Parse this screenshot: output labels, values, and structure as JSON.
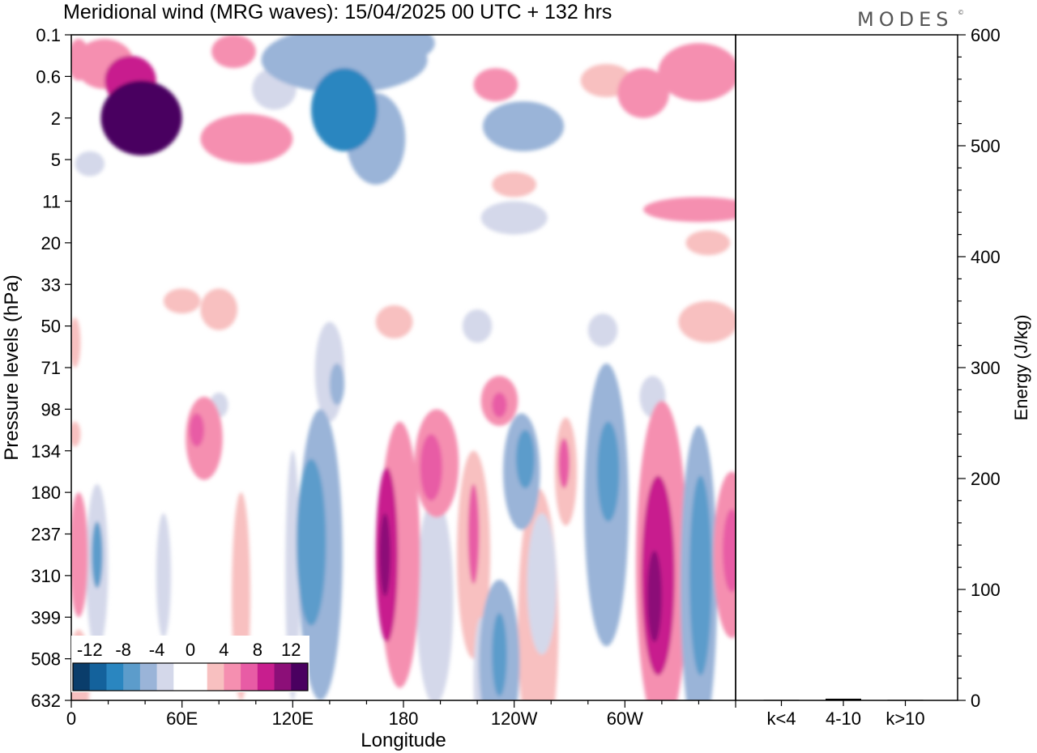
{
  "chart_data": {
    "type": "heatmap",
    "title": "Meridional wind (MRG waves):  15/04/2025  00 UTC  + 132 hrs",
    "brand": "MODES",
    "brand_mark": "©",
    "xlabel": "Longitude",
    "ylabel": "Pressure levels (hPa)",
    "x_ticks": [
      "0",
      "60E",
      "120E",
      "180",
      "120W",
      "60W"
    ],
    "x_tick_degrees": [
      0,
      60,
      120,
      180,
      240,
      300
    ],
    "x_range": [
      0,
      360
    ],
    "y_levels": [
      "0.1",
      "0.6",
      "2",
      "5",
      "11",
      "20",
      "33",
      "50",
      "71",
      "98",
      "134",
      "180",
      "237",
      "310",
      "399",
      "508",
      "632"
    ],
    "colorbar": {
      "labels": [
        "-12",
        "-8",
        "-4",
        "0",
        "4",
        "8",
        "12"
      ],
      "colors": [
        "#0a3d6b",
        "#14629c",
        "#2a86c0",
        "#5c9ccb",
        "#9ab4d8",
        "#d4d8ea",
        "#ffffff",
        "#ffffff",
        "#f8c0c0",
        "#f58fb0",
        "#e85ca5",
        "#c81e8e",
        "#8c0f78",
        "#4a0060"
      ]
    },
    "energy_panel": {
      "ylabel": "Energy (J/kg)",
      "y_ticks": [
        "0",
        "100",
        "200",
        "300",
        "400",
        "500",
        "600"
      ],
      "ylim": [
        0,
        600
      ],
      "categories": [
        "k<4",
        "4-10",
        "k>10"
      ],
      "values": [
        0.5,
        1.5,
        0.5
      ]
    },
    "blobs": [
      {
        "lon": 4,
        "lev": 0.6,
        "rx": 6,
        "ry": 0.5,
        "val": 4
      },
      {
        "lon": 18,
        "lev": 0.7,
        "rx": 16,
        "ry": 0.6,
        "val": 5
      },
      {
        "lon": 32,
        "lev": 1.1,
        "rx": 14,
        "ry": 0.6,
        "val": 8
      },
      {
        "lon": 38,
        "lev": 2.0,
        "rx": 22,
        "ry": 0.9,
        "val": 13
      },
      {
        "lon": 88,
        "lev": 0.4,
        "rx": 12,
        "ry": 0.4,
        "val": 4
      },
      {
        "lon": 95,
        "lev": 2.5,
        "rx": 25,
        "ry": 0.6,
        "val": 4
      },
      {
        "lon": 110,
        "lev": 1.3,
        "rx": 12,
        "ry": 0.5,
        "val": -3
      },
      {
        "lon": 148,
        "lev": 0.6,
        "rx": 45,
        "ry": 0.8,
        "val": -4
      },
      {
        "lon": 148,
        "lev": 1.8,
        "rx": 18,
        "ry": 1.0,
        "val": -8
      },
      {
        "lon": 165,
        "lev": 2.5,
        "rx": 16,
        "ry": 1.1,
        "val": -5
      },
      {
        "lon": 172,
        "lev": 0.2,
        "rx": 25,
        "ry": 0.5,
        "val": -5
      },
      {
        "lon": 230,
        "lev": 1.2,
        "rx": 12,
        "ry": 0.4,
        "val": 4
      },
      {
        "lon": 245,
        "lev": 2.2,
        "rx": 22,
        "ry": 0.6,
        "val": -5
      },
      {
        "lon": 240,
        "lev": 3.6,
        "rx": 12,
        "ry": 0.3,
        "val": 3
      },
      {
        "lon": 240,
        "lev": 4.4,
        "rx": 18,
        "ry": 0.4,
        "val": -3
      },
      {
        "lon": 290,
        "lev": 1.1,
        "rx": 14,
        "ry": 0.4,
        "val": 3
      },
      {
        "lon": 310,
        "lev": 1.4,
        "rx": 14,
        "ry": 0.6,
        "val": 4
      },
      {
        "lon": 340,
        "lev": 0.9,
        "rx": 22,
        "ry": 0.7,
        "val": 5
      },
      {
        "lon": 340,
        "lev": 4.2,
        "rx": 30,
        "ry": 0.3,
        "val": 4
      },
      {
        "lon": 345,
        "lev": 5.0,
        "rx": 12,
        "ry": 0.3,
        "val": 3
      },
      {
        "lon": 10,
        "lev": 3.1,
        "rx": 8,
        "ry": 0.3,
        "val": -3
      },
      {
        "lon": 60,
        "lev": 6.4,
        "rx": 10,
        "ry": 0.3,
        "val": 3
      },
      {
        "lon": 80,
        "lev": 6.6,
        "rx": 10,
        "ry": 0.5,
        "val": 3
      },
      {
        "lon": 80,
        "lev": 8.9,
        "rx": 5,
        "ry": 0.3,
        "val": -3
      },
      {
        "lon": 175,
        "lev": 6.9,
        "rx": 10,
        "ry": 0.4,
        "val": 3
      },
      {
        "lon": 220,
        "lev": 7.0,
        "rx": 8,
        "ry": 0.4,
        "val": -3
      },
      {
        "lon": 288,
        "lev": 7.1,
        "rx": 8,
        "ry": 0.4,
        "val": -3
      },
      {
        "lon": 345,
        "lev": 6.9,
        "rx": 16,
        "ry": 0.5,
        "val": 3
      },
      {
        "lon": 2,
        "lev": 7.4,
        "rx": 3,
        "ry": 0.6,
        "val": 3
      },
      {
        "lon": 140,
        "lev": 8.1,
        "rx": 8,
        "ry": 1.2,
        "val": -3
      },
      {
        "lon": 144,
        "lev": 8.4,
        "rx": 4,
        "ry": 0.5,
        "val": -5
      },
      {
        "lon": 232,
        "lev": 8.8,
        "rx": 10,
        "ry": 0.6,
        "val": 4
      },
      {
        "lon": 232,
        "lev": 8.9,
        "rx": 4,
        "ry": 0.3,
        "val": 7
      },
      {
        "lon": 315,
        "lev": 8.7,
        "rx": 7,
        "ry": 0.5,
        "val": -3
      },
      {
        "lon": 72,
        "lev": 9.7,
        "rx": 10,
        "ry": 1.0,
        "val": 4
      },
      {
        "lon": 68,
        "lev": 9.5,
        "rx": 4,
        "ry": 0.4,
        "val": 6
      },
      {
        "lon": 2,
        "lev": 9.6,
        "rx": 3,
        "ry": 0.3,
        "val": 3
      },
      {
        "lon": 178,
        "lev": 12.5,
        "rx": 11,
        "ry": 3.2,
        "val": 4
      },
      {
        "lon": 171,
        "lev": 12.5,
        "rx": 6,
        "ry": 2.1,
        "val": 8
      },
      {
        "lon": 170,
        "lev": 12.5,
        "rx": 3,
        "ry": 1.0,
        "val": 11
      },
      {
        "lon": 198,
        "lev": 10.3,
        "rx": 12,
        "ry": 1.3,
        "val": 4
      },
      {
        "lon": 195,
        "lev": 10.4,
        "rx": 6,
        "ry": 0.8,
        "val": 7
      },
      {
        "lon": 218,
        "lev": 12.5,
        "rx": 9,
        "ry": 2.5,
        "val": 3
      },
      {
        "lon": 218,
        "lev": 12.0,
        "rx": 3,
        "ry": 1.2,
        "val": 6
      },
      {
        "lon": 197,
        "lev": 13.6,
        "rx": 10,
        "ry": 2.5,
        "val": -3
      },
      {
        "lon": 244,
        "lev": 10.5,
        "rx": 10,
        "ry": 1.4,
        "val": -4
      },
      {
        "lon": 246,
        "lev": 10.2,
        "rx": 5,
        "ry": 0.7,
        "val": -7
      },
      {
        "lon": 268,
        "lev": 10.5,
        "rx": 6,
        "ry": 1.3,
        "val": 3
      },
      {
        "lon": 267,
        "lev": 10.3,
        "rx": 3,
        "ry": 0.6,
        "val": 7
      },
      {
        "lon": 290,
        "lev": 11.3,
        "rx": 12,
        "ry": 3.4,
        "val": -4
      },
      {
        "lon": 291,
        "lev": 10.5,
        "rx": 6,
        "ry": 1.2,
        "val": -7
      },
      {
        "lon": 320,
        "lev": 12.8,
        "rx": 14,
        "ry": 4.0,
        "val": 4
      },
      {
        "lon": 318,
        "lev": 13.0,
        "rx": 9,
        "ry": 2.4,
        "val": 8
      },
      {
        "lon": 316,
        "lev": 13.5,
        "rx": 4,
        "ry": 1.1,
        "val": 11
      },
      {
        "lon": 340,
        "lev": 13.2,
        "rx": 10,
        "ry": 3.8,
        "val": -4
      },
      {
        "lon": 341,
        "lev": 13.0,
        "rx": 6,
        "ry": 2.4,
        "val": -6
      },
      {
        "lon": 135,
        "lev": 12.5,
        "rx": 12,
        "ry": 3.5,
        "val": -4
      },
      {
        "lon": 130,
        "lev": 12.2,
        "rx": 8,
        "ry": 2.0,
        "val": -6
      },
      {
        "lon": 120,
        "lev": 13.0,
        "rx": 4,
        "ry": 3.0,
        "val": -3
      },
      {
        "lon": 92,
        "lev": 13.5,
        "rx": 5,
        "ry": 2.5,
        "val": 3
      },
      {
        "lon": 14,
        "lev": 12.8,
        "rx": 6,
        "ry": 2.0,
        "val": -3
      },
      {
        "lon": 14,
        "lev": 12.5,
        "rx": 3,
        "ry": 0.8,
        "val": -6
      },
      {
        "lon": 4,
        "lev": 12.5,
        "rx": 5,
        "ry": 1.5,
        "val": 4
      },
      {
        "lon": 4,
        "lev": 15.5,
        "rx": 6,
        "ry": 1.2,
        "val": 3
      },
      {
        "lon": 50,
        "lev": 13.0,
        "rx": 4,
        "ry": 1.5,
        "val": -3
      },
      {
        "lon": 253,
        "lev": 14.2,
        "rx": 11,
        "ry": 3.3,
        "val": 3
      },
      {
        "lon": 255,
        "lev": 13.2,
        "rx": 8,
        "ry": 1.7,
        "val": -3
      },
      {
        "lon": 232,
        "lev": 15.1,
        "rx": 11,
        "ry": 2.0,
        "val": -4
      },
      {
        "lon": 232,
        "lev": 14.9,
        "rx": 4,
        "ry": 1.0,
        "val": -7
      },
      {
        "lon": 222,
        "lev": 15.5,
        "rx": 4,
        "ry": 1.5,
        "val": -3
      },
      {
        "lon": 320,
        "lev": 16.0,
        "rx": 8,
        "ry": 0.6,
        "val": 3
      },
      {
        "lon": 358,
        "lev": 12.5,
        "rx": 10,
        "ry": 2.0,
        "val": 4
      },
      {
        "lon": 358,
        "lev": 12.4,
        "rx": 5,
        "ry": 1.0,
        "val": 7
      }
    ]
  }
}
